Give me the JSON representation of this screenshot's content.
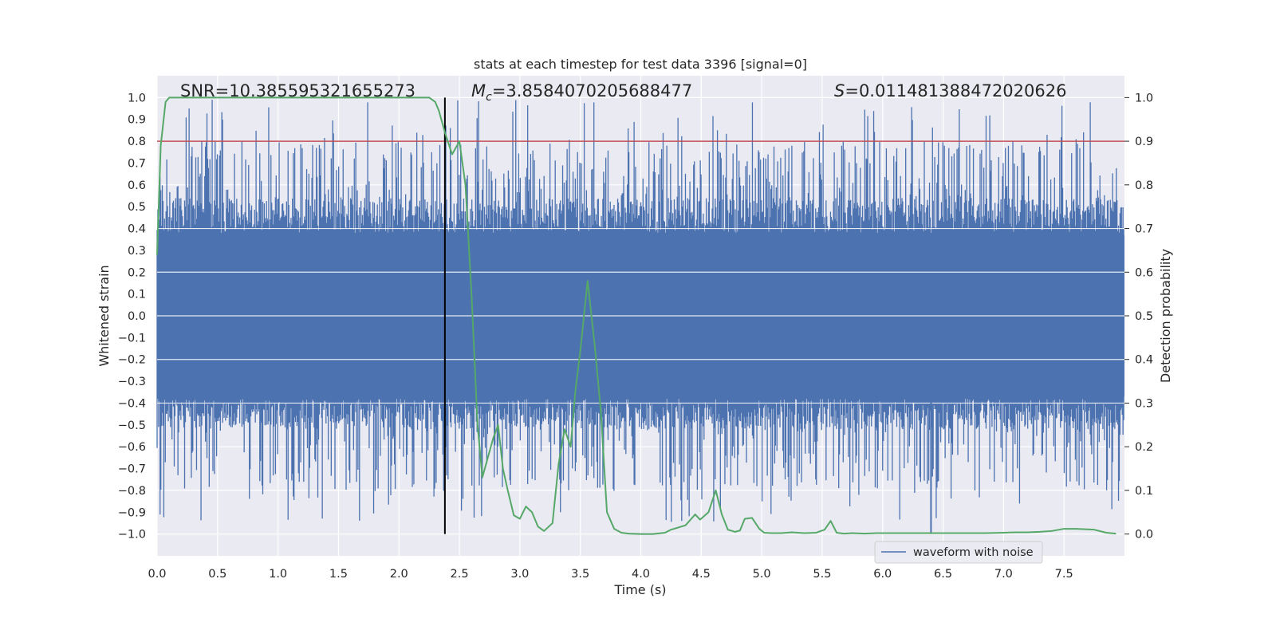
{
  "chart_data": {
    "type": "line",
    "title": "stats at each timestep for test data 3396 [signal=0]",
    "xlabel": "Time (s)",
    "ylabel_left": "Whitened strain",
    "ylabel_right": "Detection probability",
    "xlim": [
      0.0,
      8.0
    ],
    "ylim_left": [
      -1.1,
      1.1
    ],
    "ylim_right": [
      -0.05,
      1.05
    ],
    "x_ticks": [
      "0.0",
      "0.5",
      "1.0",
      "1.5",
      "2.0",
      "2.5",
      "3.0",
      "3.5",
      "4.0",
      "4.5",
      "5.0",
      "5.5",
      "6.0",
      "6.5",
      "7.0",
      "7.5"
    ],
    "y_left_ticks": [
      "1.0",
      "0.9",
      "0.8",
      "0.7",
      "0.6",
      "0.5",
      "0.4",
      "0.3",
      "0.2",
      "0.1",
      "0.0",
      "−0.1",
      "−0.2",
      "−0.3",
      "−0.4",
      "−0.5",
      "−0.6",
      "−0.7",
      "−0.8",
      "−0.9",
      "−1.0"
    ],
    "y_right_ticks": [
      "1.0",
      "0.9",
      "0.8",
      "0.7",
      "0.6",
      "0.5",
      "0.4",
      "0.3",
      "0.2",
      "0.1",
      "0.0"
    ],
    "annotations": {
      "snr": "SNR=10.385595321655273",
      "mc_symbol": "M",
      "mc_sub": "c",
      "mc_value": "=3.8584070205688477",
      "s_symbol": "S",
      "s_value": "=0.011481388472020626"
    },
    "threshold": {
      "value_right": 0.9,
      "color": "#c44e52"
    },
    "vline": {
      "x": 2.38,
      "color": "#000000"
    },
    "legend": {
      "label": "waveform with noise",
      "location": "lower-right"
    },
    "series": [
      {
        "name": "waveform with noise",
        "axis": "left",
        "color": "#4c72b0",
        "note": "dense whitened strain noise; core band approx ±0.4 with spikes to ±1.0"
      },
      {
        "name": "detection probability",
        "axis": "right",
        "color": "#55a868",
        "x": [
          0.0,
          0.03,
          0.07,
          0.1,
          0.15,
          0.5,
          1.0,
          1.5,
          2.0,
          2.25,
          2.3,
          2.33,
          2.38,
          2.44,
          2.5,
          2.55,
          2.6,
          2.65,
          2.69,
          2.73,
          2.78,
          2.82,
          2.86,
          2.9,
          2.95,
          3.0,
          3.05,
          3.1,
          3.15,
          3.2,
          3.27,
          3.32,
          3.37,
          3.42,
          3.46,
          3.5,
          3.56,
          3.62,
          3.67,
          3.72,
          3.78,
          3.84,
          3.9,
          4.0,
          4.1,
          4.2,
          4.25,
          4.37,
          4.45,
          4.49,
          4.56,
          4.62,
          4.67,
          4.72,
          4.78,
          4.82,
          4.86,
          4.92,
          4.98,
          5.02,
          5.08,
          5.16,
          5.25,
          5.35,
          5.45,
          5.52,
          5.57,
          5.62,
          5.68,
          5.75,
          5.85,
          5.95,
          6.05,
          6.2,
          6.35,
          6.5,
          6.6,
          6.7,
          6.85,
          7.0,
          7.1,
          7.2,
          7.3,
          7.4,
          7.5,
          7.6,
          7.75,
          7.85,
          7.93
        ],
        "y": [
          0.64,
          0.89,
          0.99,
          1.0,
          1.0,
          1.0,
          1.0,
          1.0,
          1.0,
          1.0,
          0.99,
          0.97,
          0.92,
          0.87,
          0.9,
          0.8,
          0.55,
          0.25,
          0.13,
          0.17,
          0.22,
          0.25,
          0.15,
          0.1,
          0.043,
          0.035,
          0.063,
          0.05,
          0.017,
          0.007,
          0.025,
          0.16,
          0.24,
          0.2,
          0.33,
          0.42,
          0.58,
          0.43,
          0.28,
          0.05,
          0.012,
          0.003,
          0.001,
          0.0,
          0.0,
          0.003,
          0.01,
          0.02,
          0.045,
          0.033,
          0.05,
          0.1,
          0.045,
          0.01,
          0.005,
          0.008,
          0.035,
          0.037,
          0.012,
          0.003,
          0.002,
          0.002,
          0.004,
          0.002,
          0.003,
          0.01,
          0.03,
          0.003,
          0.001,
          0.002,
          0.001,
          0.002,
          0.002,
          0.002,
          0.002,
          0.002,
          0.002,
          0.002,
          0.002,
          0.003,
          0.004,
          0.004,
          0.005,
          0.007,
          0.012,
          0.012,
          0.01,
          0.003,
          0.001
        ]
      }
    ]
  }
}
